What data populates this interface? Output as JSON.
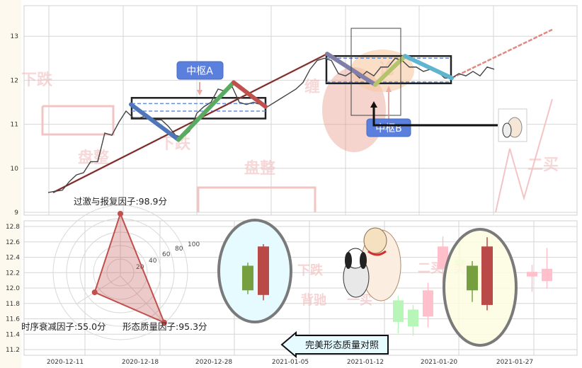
{
  "chart_data": [
    {
      "type": "line",
      "panel": "top",
      "ylim": [
        9,
        13.6
      ],
      "yticks": [
        "13",
        "12",
        "11",
        "10",
        "9"
      ],
      "grid": true,
      "colors": {
        "price": "#444444",
        "trend": "#c0504d"
      },
      "price": [
        9.45,
        9.48,
        9.5,
        9.7,
        9.85,
        9.9,
        10.15,
        10.15,
        10.8,
        10.75,
        11.05,
        11.3,
        11.15,
        11.15,
        11.2,
        11.1,
        11.1,
        10.95,
        10.75,
        10.7,
        10.85,
        11.25,
        11.4,
        11.5,
        11.8,
        11.75,
        11.85,
        11.5,
        11.45,
        11.5,
        11.45,
        11.4,
        11.5,
        11.6,
        11.7,
        11.8,
        11.95,
        12.25,
        12.45,
        12.5,
        12.45,
        12.15,
        12.1,
        12.2,
        12.05,
        12.2,
        12.1,
        12.3,
        12.3,
        12.5,
        12.45,
        12.3,
        12.3,
        12.2,
        12.25,
        12.2,
        12.05,
        12.05,
        12.15,
        12.1,
        12.2,
        12.1,
        12.3,
        12.25
      ],
      "trend_line": {
        "from": [
          0.7,
          9.45
        ],
        "to": [
          39.4,
          12.6
        ]
      },
      "projection_line": {
        "from": [
          57,
          12.05
        ],
        "to": [
          71.2,
          13.15
        ]
      },
      "strokes": [
        {
          "from": [
            11.7,
            11.45
          ],
          "to": [
            18.4,
            10.65
          ],
          "color": "#4f76b8"
        },
        {
          "from": [
            18.4,
            10.65
          ],
          "to": [
            26.2,
            11.95
          ],
          "color": "#5aaa62"
        },
        {
          "from": [
            26.2,
            11.95
          ],
          "to": [
            30.7,
            11.4
          ],
          "color": "#c0504d"
        },
        {
          "from": [
            39.4,
            12.6
          ],
          "to": [
            46.2,
            11.9
          ],
          "color": "#7f7fa8"
        },
        {
          "from": [
            46.2,
            11.9
          ],
          "to": [
            50.4,
            12.55
          ],
          "color": "#b5c46a"
        },
        {
          "from": [
            50.4,
            12.55
          ],
          "to": [
            57,
            12.05
          ],
          "color": "#5fb5d0"
        }
      ],
      "pivots": [
        {
          "label": "中枢A",
          "x": [
            11.8,
            30.7
          ],
          "y": [
            11.13,
            11.6
          ],
          "dashed": [
            11.47,
            11.3
          ]
        },
        {
          "label": "中枢B",
          "x": [
            39.3,
            56.9
          ],
          "y": [
            11.93,
            12.55
          ],
          "dashed": [
            12.5,
            11.96
          ]
        }
      ],
      "watermarks": [
        "下跌",
        "盘整",
        "下跌",
        "盘整",
        "缠",
        "论",
        "二买"
      ]
    },
    {
      "type": "radar",
      "panel": "bottom-left",
      "axis_ticks": [
        "20",
        "40",
        "60",
        "80",
        "100"
      ],
      "indicators": [
        {
          "name": "过激与报复因子",
          "value": 98.9,
          "label": "过激与报复因子:98.9分"
        },
        {
          "name": "时序衰减因子",
          "value": 55.0,
          "label": "时序衰减因子:55.0分"
        },
        {
          "name": "形态质量因子",
          "value": 95.3,
          "label": "形态质量因子:95.3分"
        }
      ],
      "color": "#c0504d"
    },
    {
      "type": "candlestick",
      "panel": "bottom",
      "ylim": [
        11.15,
        12.85
      ],
      "yticks": [
        "12.8",
        "12.6",
        "12.4",
        "12.2",
        "12.0",
        "11.8",
        "11.6",
        "11.4",
        "11.2"
      ],
      "xticks": [
        "2020-12-11",
        "2020-12-18",
        "2020-12-28",
        "2021-01-05",
        "2021-01-12",
        "2021-01-20",
        "2021-01-27"
      ],
      "highlight_left": [
        {
          "open": 11.97,
          "close": 12.29,
          "high": 12.33,
          "low": 11.92,
          "color": "#76a040"
        },
        {
          "open": 12.54,
          "close": 11.91,
          "high": 12.57,
          "low": 11.84,
          "color": "#b94a48"
        }
      ],
      "highlight_right": [
        {
          "open": 11.97,
          "close": 12.29,
          "high": 12.35,
          "low": 11.82,
          "color": "#76a040"
        },
        {
          "open": 12.54,
          "close": 11.78,
          "high": 12.66,
          "low": 11.71,
          "color": "#b94a48"
        }
      ],
      "faint_candles": [
        {
          "open": 11.84,
          "close": 11.56,
          "high": 11.9,
          "low": 11.41,
          "color": "#b8f5b8"
        },
        {
          "open": 11.72,
          "close": 11.5,
          "high": 11.78,
          "low": 11.38,
          "color": "#b8f5b8"
        },
        {
          "open": 11.63,
          "close": 11.97,
          "high": 12.07,
          "low": 11.49,
          "color": "#ffc0cb"
        },
        {
          "open": 12.25,
          "close": 12.54,
          "high": 12.67,
          "low": 12.07,
          "color": "#ffc0cb"
        },
        {
          "open": 12.37,
          "close": 12.33,
          "high": 12.65,
          "low": 12.25,
          "color": "#b8f5b8"
        },
        {
          "open": 12.15,
          "close": 12.21,
          "high": 12.3,
          "low": 11.95,
          "color": "#ffc0cb"
        },
        {
          "open": 12.09,
          "close": 12.25,
          "high": 12.52,
          "low": 11.99,
          "color": "#ffc0cb"
        }
      ],
      "watermarks": [
        "下跌",
        "背驰",
        "一买",
        "二买",
        "类二买"
      ],
      "callout": "完美形态质量对照"
    }
  ]
}
